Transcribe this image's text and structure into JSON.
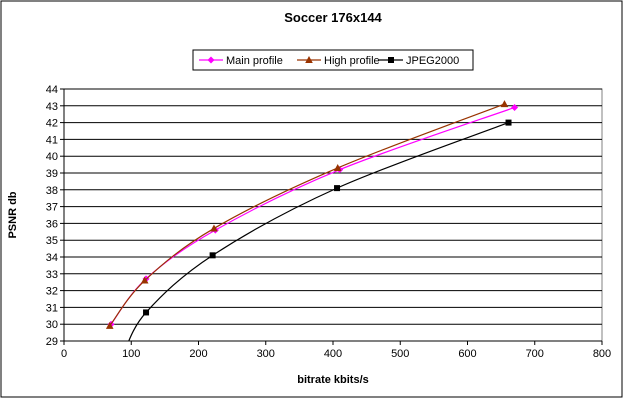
{
  "chart_data": {
    "type": "line",
    "title": "Soccer 176x144",
    "xlabel": "bitrate kbits/s",
    "ylabel": "PSNR db",
    "xlim": [
      0,
      800
    ],
    "ylim": [
      29,
      44
    ],
    "xticks": [
      0,
      100,
      200,
      300,
      400,
      500,
      600,
      700,
      800
    ],
    "yticks": [
      29,
      30,
      31,
      32,
      33,
      34,
      35,
      36,
      37,
      38,
      39,
      40,
      41,
      42,
      43,
      44
    ],
    "grid": "horizontal",
    "legend_position": "top-center",
    "series": [
      {
        "name": "Main profile",
        "color": "#ff00ff",
        "marker": "diamond",
        "points": [
          [
            70,
            30.0
          ],
          [
            122,
            32.7
          ],
          [
            225,
            35.6
          ],
          [
            410,
            39.2
          ],
          [
            670,
            42.9
          ]
        ]
      },
      {
        "name": "High profile",
        "color": "#993300",
        "marker": "triangle",
        "points": [
          [
            68,
            29.9
          ],
          [
            120,
            32.6
          ],
          [
            223,
            35.7
          ],
          [
            407,
            39.3
          ],
          [
            655,
            43.1
          ]
        ]
      },
      {
        "name": "JPEG2000",
        "color": "#000000",
        "marker": "square",
        "points": [
          [
            88,
            28.2
          ],
          [
            122,
            30.7
          ],
          [
            221,
            34.1
          ],
          [
            406,
            38.1
          ],
          [
            661,
            42.0
          ]
        ]
      }
    ]
  }
}
